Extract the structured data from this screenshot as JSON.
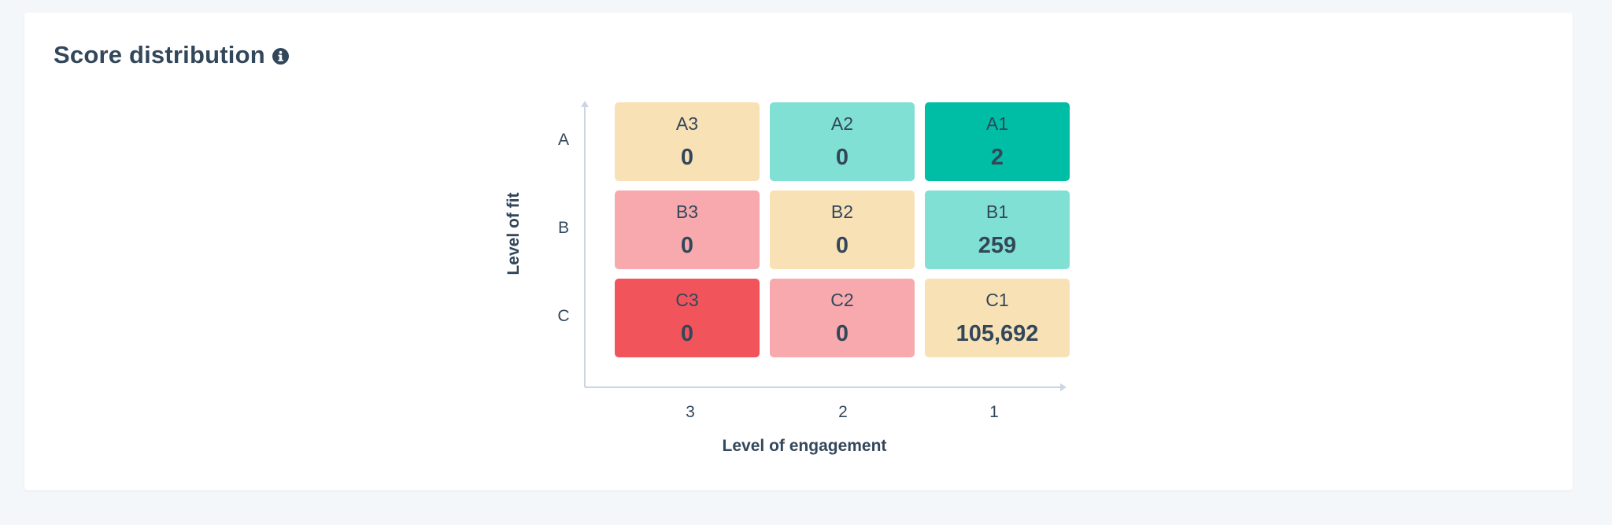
{
  "header": {
    "title": "Score distribution",
    "info_icon": "info-icon"
  },
  "chart_data": {
    "type": "heatmap",
    "title": "Score distribution",
    "xlabel": "Level of engagement",
    "ylabel": "Level of fit",
    "x_ticks": [
      "3",
      "2",
      "1"
    ],
    "y_ticks": [
      "A",
      "B",
      "C"
    ],
    "cells": [
      {
        "code": "A3",
        "row": "A",
        "col": "3",
        "value": 0,
        "count_label": "0",
        "color": "#f9e1b6"
      },
      {
        "code": "A2",
        "row": "A",
        "col": "2",
        "value": 0,
        "count_label": "0",
        "color": "#80e0d3"
      },
      {
        "code": "A1",
        "row": "A",
        "col": "1",
        "value": 2,
        "count_label": "2",
        "color": "#00bda5"
      },
      {
        "code": "B3",
        "row": "B",
        "col": "3",
        "value": 0,
        "count_label": "0",
        "color": "#f8a9ad"
      },
      {
        "code": "B2",
        "row": "B",
        "col": "2",
        "value": 0,
        "count_label": "0",
        "color": "#f9e1b6"
      },
      {
        "code": "B1",
        "row": "B",
        "col": "1",
        "value": 259,
        "count_label": "259",
        "color": "#80e0d3"
      },
      {
        "code": "C3",
        "row": "C",
        "col": "3",
        "value": 0,
        "count_label": "0",
        "color": "#f2545b"
      },
      {
        "code": "C2",
        "row": "C",
        "col": "2",
        "value": 0,
        "count_label": "0",
        "color": "#f8a9ad"
      },
      {
        "code": "C1",
        "row": "C",
        "col": "1",
        "value": 105692,
        "count_label": "105,692",
        "color": "#f9e1b6"
      }
    ]
  }
}
